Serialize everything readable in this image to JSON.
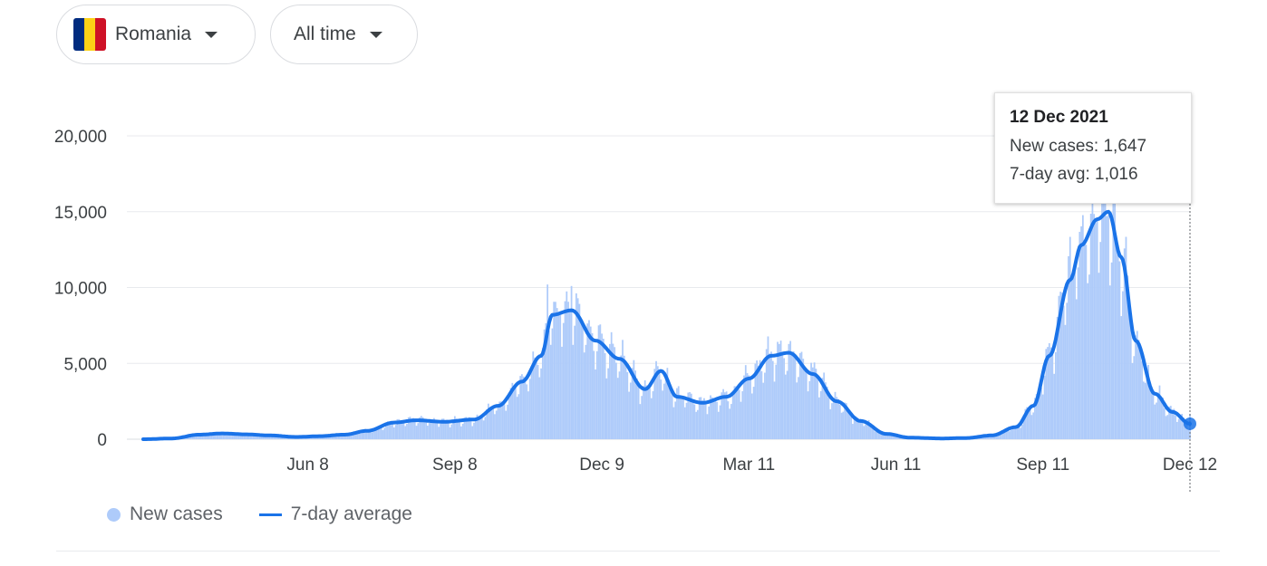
{
  "filters": {
    "country": {
      "label": "Romania",
      "flag_colors": [
        "#002b7f",
        "#fcd116",
        "#ce1126"
      ]
    },
    "time_range": {
      "label": "All time"
    }
  },
  "tooltip": {
    "date": "12 Dec 2021",
    "new_cases_label": "New cases: 1,647",
    "avg_label": "7-day avg: 1,016"
  },
  "legend": {
    "new_cases": "New cases",
    "seven_day_avg": "7-day average"
  },
  "colors": {
    "bar": "#aecbfa",
    "line": "#1a73e8",
    "grid": "#e8eaed",
    "axis_text": "#3c4043"
  },
  "chart_data": {
    "type": "area",
    "x_start": "2020-02-26",
    "x_end": "2021-12-12",
    "ylim": [
      0,
      20000
    ],
    "y_ticks": [
      {
        "value": 0,
        "label": "0"
      },
      {
        "value": 5000,
        "label": "5,000"
      },
      {
        "value": 10000,
        "label": "10,000"
      },
      {
        "value": 15000,
        "label": "15,000"
      },
      {
        "value": 20000,
        "label": "20,000"
      }
    ],
    "x_ticks": [
      {
        "date": "2020-06-08",
        "label": "Jun 8"
      },
      {
        "date": "2020-09-08",
        "label": "Sep 8"
      },
      {
        "date": "2020-12-09",
        "label": "Dec 9"
      },
      {
        "date": "2021-03-11",
        "label": "Mar 11"
      },
      {
        "date": "2021-06-11",
        "label": "Jun 11"
      },
      {
        "date": "2021-09-11",
        "label": "Sep 11"
      },
      {
        "date": "2021-12-12",
        "label": "Dec 12"
      }
    ],
    "series": [
      {
        "name": "7-day average",
        "points": [
          [
            "2020-02-26",
            0
          ],
          [
            "2020-03-15",
            50
          ],
          [
            "2020-04-01",
            300
          ],
          [
            "2020-04-15",
            380
          ],
          [
            "2020-05-01",
            320
          ],
          [
            "2020-05-15",
            250
          ],
          [
            "2020-06-01",
            150
          ],
          [
            "2020-06-15",
            200
          ],
          [
            "2020-07-01",
            300
          ],
          [
            "2020-07-15",
            550
          ],
          [
            "2020-08-01",
            1100
          ],
          [
            "2020-08-15",
            1250
          ],
          [
            "2020-09-01",
            1150
          ],
          [
            "2020-09-20",
            1300
          ],
          [
            "2020-10-05",
            2200
          ],
          [
            "2020-10-20",
            3800
          ],
          [
            "2020-11-01",
            5500
          ],
          [
            "2020-11-08",
            8200
          ],
          [
            "2020-11-20",
            8500
          ],
          [
            "2020-12-05",
            6500
          ],
          [
            "2020-12-20",
            5300
          ],
          [
            "2021-01-05",
            3300
          ],
          [
            "2021-01-15",
            4500
          ],
          [
            "2021-01-25",
            2800
          ],
          [
            "2021-02-10",
            2400
          ],
          [
            "2021-02-25",
            2800
          ],
          [
            "2021-03-11",
            4000
          ],
          [
            "2021-03-25",
            5500
          ],
          [
            "2021-04-05",
            5700
          ],
          [
            "2021-04-20",
            4300
          ],
          [
            "2021-05-05",
            2500
          ],
          [
            "2021-05-20",
            1200
          ],
          [
            "2021-06-05",
            350
          ],
          [
            "2021-06-20",
            100
          ],
          [
            "2021-07-10",
            50
          ],
          [
            "2021-07-25",
            80
          ],
          [
            "2021-08-10",
            250
          ],
          [
            "2021-08-25",
            800
          ],
          [
            "2021-09-05",
            2200
          ],
          [
            "2021-09-15",
            5500
          ],
          [
            "2021-09-28",
            10500
          ],
          [
            "2021-10-05",
            12800
          ],
          [
            "2021-10-15",
            14500
          ],
          [
            "2021-10-22",
            15000
          ],
          [
            "2021-10-30",
            12000
          ],
          [
            "2021-11-08",
            6500
          ],
          [
            "2021-11-20",
            3000
          ],
          [
            "2021-12-01",
            1800
          ],
          [
            "2021-12-12",
            1016
          ]
        ]
      },
      {
        "name": "New cases",
        "points": [
          [
            "2020-11-05",
            10200
          ],
          [
            "2020-11-20",
            10100
          ],
          [
            "2021-03-31",
            6500
          ],
          [
            "2021-10-18",
            15800
          ],
          [
            "2021-12-12",
            1647
          ]
        ]
      }
    ]
  }
}
